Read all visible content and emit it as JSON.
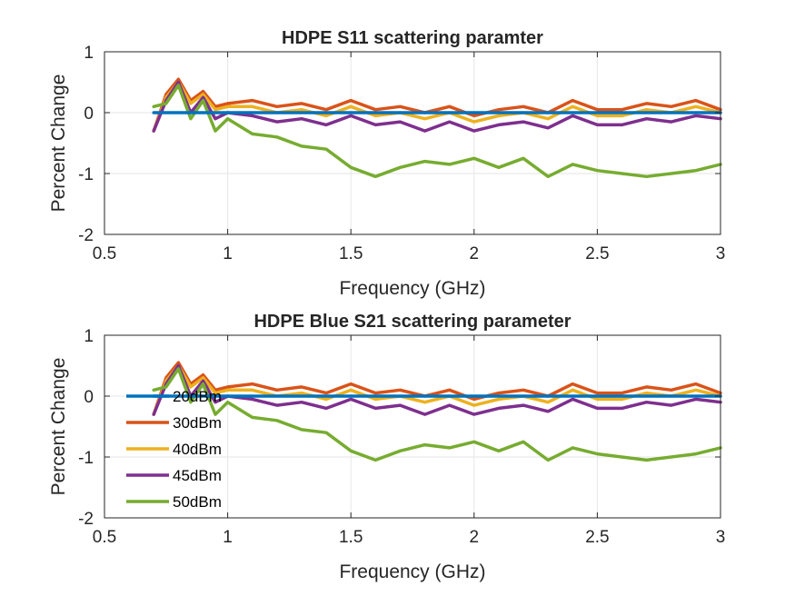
{
  "chart_data": [
    {
      "type": "line",
      "title": "HDPE S11 scattering paramter",
      "xlabel": "Frequency (GHz)",
      "ylabel": "Percent Change",
      "xlim": [
        0.5,
        3
      ],
      "ylim": [
        -2,
        1
      ],
      "xticks": [
        0.5,
        1,
        1.5,
        2,
        2.5,
        3
      ],
      "xtick_labels": [
        "0.5",
        "1",
        "1.5",
        "2",
        "2.5",
        "3"
      ],
      "yticks": [
        -2,
        -1,
        0,
        1
      ],
      "ytick_labels": [
        "-2",
        "-1",
        "0",
        "1"
      ],
      "grid": true,
      "legend": null,
      "x": [
        0.7,
        0.75,
        0.8,
        0.85,
        0.9,
        0.95,
        1.0,
        1.1,
        1.2,
        1.3,
        1.4,
        1.5,
        1.6,
        1.7,
        1.8,
        1.9,
        2.0,
        2.1,
        2.2,
        2.3,
        2.4,
        2.5,
        2.6,
        2.7,
        2.8,
        2.9,
        3.0
      ],
      "series": [
        {
          "name": "20dBm",
          "color": "#0072BD",
          "values": [
            0,
            0,
            0,
            0,
            0,
            0,
            0,
            0,
            0,
            0,
            0,
            0,
            0,
            0,
            0,
            0,
            0,
            0,
            0,
            0,
            0,
            0,
            0,
            0,
            0,
            0,
            0
          ]
        },
        {
          "name": "30dBm",
          "color": "#D95319",
          "values": [
            -0.3,
            0.3,
            0.55,
            0.2,
            0.35,
            0.1,
            0.15,
            0.2,
            0.1,
            0.15,
            0.05,
            0.2,
            0.05,
            0.1,
            0.0,
            0.1,
            -0.05,
            0.05,
            0.1,
            0.0,
            0.2,
            0.05,
            0.05,
            0.15,
            0.1,
            0.2,
            0.05
          ]
        },
        {
          "name": "40dBm",
          "color": "#EDB120",
          "values": [
            -0.3,
            0.25,
            0.5,
            0.15,
            0.3,
            0.05,
            0.1,
            0.1,
            0.0,
            0.05,
            -0.05,
            0.1,
            -0.05,
            0.0,
            -0.1,
            0.0,
            -0.15,
            -0.05,
            0.0,
            -0.1,
            0.1,
            -0.05,
            -0.05,
            0.05,
            0.0,
            0.1,
            0.0
          ]
        },
        {
          "name": "45dBm",
          "color": "#7E2F8E",
          "values": [
            -0.3,
            0.2,
            0.5,
            0.0,
            0.25,
            -0.1,
            0.0,
            -0.05,
            -0.15,
            -0.1,
            -0.2,
            -0.05,
            -0.2,
            -0.15,
            -0.3,
            -0.15,
            -0.3,
            -0.2,
            -0.15,
            -0.25,
            -0.05,
            -0.2,
            -0.2,
            -0.1,
            -0.15,
            -0.05,
            -0.1
          ]
        },
        {
          "name": "50dBm",
          "color": "#77AC30",
          "values": [
            0.1,
            0.15,
            0.45,
            -0.1,
            0.2,
            -0.3,
            -0.1,
            -0.35,
            -0.4,
            -0.55,
            -0.6,
            -0.9,
            -1.05,
            -0.9,
            -0.8,
            -0.85,
            -0.75,
            -0.9,
            -0.75,
            -1.05,
            -0.85,
            -0.95,
            -1.0,
            -1.05,
            -1.0,
            -0.95,
            -0.85
          ]
        }
      ]
    },
    {
      "type": "line",
      "title": "HDPE Blue S21 scattering parameter",
      "xlabel": "Frequency (GHz)",
      "ylabel": "Percent Change",
      "xlim": [
        0.5,
        3
      ],
      "ylim": [
        -2,
        1
      ],
      "xticks": [
        0.5,
        1,
        1.5,
        2,
        2.5,
        3
      ],
      "xtick_labels": [
        "0.5",
        "1",
        "1.5",
        "2",
        "2.5",
        "3"
      ],
      "yticks": [
        -2,
        -1,
        0,
        1
      ],
      "ytick_labels": [
        "-2",
        "-1",
        "0",
        "1"
      ],
      "grid": true,
      "legend": "left",
      "x": [
        0.7,
        0.75,
        0.8,
        0.85,
        0.9,
        0.95,
        1.0,
        1.1,
        1.2,
        1.3,
        1.4,
        1.5,
        1.6,
        1.7,
        1.8,
        1.9,
        2.0,
        2.1,
        2.2,
        2.3,
        2.4,
        2.5,
        2.6,
        2.7,
        2.8,
        2.9,
        3.0
      ],
      "series": [
        {
          "name": "20dBm",
          "color": "#0072BD",
          "values": [
            0,
            0,
            0,
            0,
            0,
            0,
            0,
            0,
            0,
            0,
            0,
            0,
            0,
            0,
            0,
            0,
            0,
            0,
            0,
            0,
            0,
            0,
            0,
            0,
            0,
            0,
            0
          ]
        },
        {
          "name": "30dBm",
          "color": "#D95319",
          "values": [
            -0.3,
            0.3,
            0.55,
            0.2,
            0.35,
            0.1,
            0.15,
            0.2,
            0.1,
            0.15,
            0.05,
            0.2,
            0.05,
            0.1,
            0.0,
            0.1,
            -0.05,
            0.05,
            0.1,
            0.0,
            0.2,
            0.05,
            0.05,
            0.15,
            0.1,
            0.2,
            0.05
          ]
        },
        {
          "name": "40dBm",
          "color": "#EDB120",
          "values": [
            -0.3,
            0.25,
            0.5,
            0.15,
            0.3,
            0.05,
            0.1,
            0.1,
            0.0,
            0.05,
            -0.05,
            0.1,
            -0.05,
            0.0,
            -0.1,
            0.0,
            -0.15,
            -0.05,
            0.0,
            -0.1,
            0.1,
            -0.05,
            -0.05,
            0.05,
            0.0,
            0.1,
            0.0
          ]
        },
        {
          "name": "45dBm",
          "color": "#7E2F8E",
          "values": [
            -0.3,
            0.2,
            0.5,
            0.0,
            0.25,
            -0.1,
            0.0,
            -0.05,
            -0.15,
            -0.1,
            -0.2,
            -0.05,
            -0.2,
            -0.15,
            -0.3,
            -0.15,
            -0.3,
            -0.2,
            -0.15,
            -0.25,
            -0.05,
            -0.2,
            -0.2,
            -0.1,
            -0.15,
            -0.05,
            -0.1
          ]
        },
        {
          "name": "50dBm",
          "color": "#77AC30",
          "values": [
            0.1,
            0.15,
            0.45,
            -0.1,
            0.2,
            -0.3,
            -0.1,
            -0.35,
            -0.4,
            -0.55,
            -0.6,
            -0.9,
            -1.05,
            -0.9,
            -0.8,
            -0.85,
            -0.75,
            -0.9,
            -0.75,
            -1.05,
            -0.85,
            -0.95,
            -1.0,
            -1.05,
            -1.0,
            -0.95,
            -0.85
          ]
        }
      ]
    }
  ]
}
